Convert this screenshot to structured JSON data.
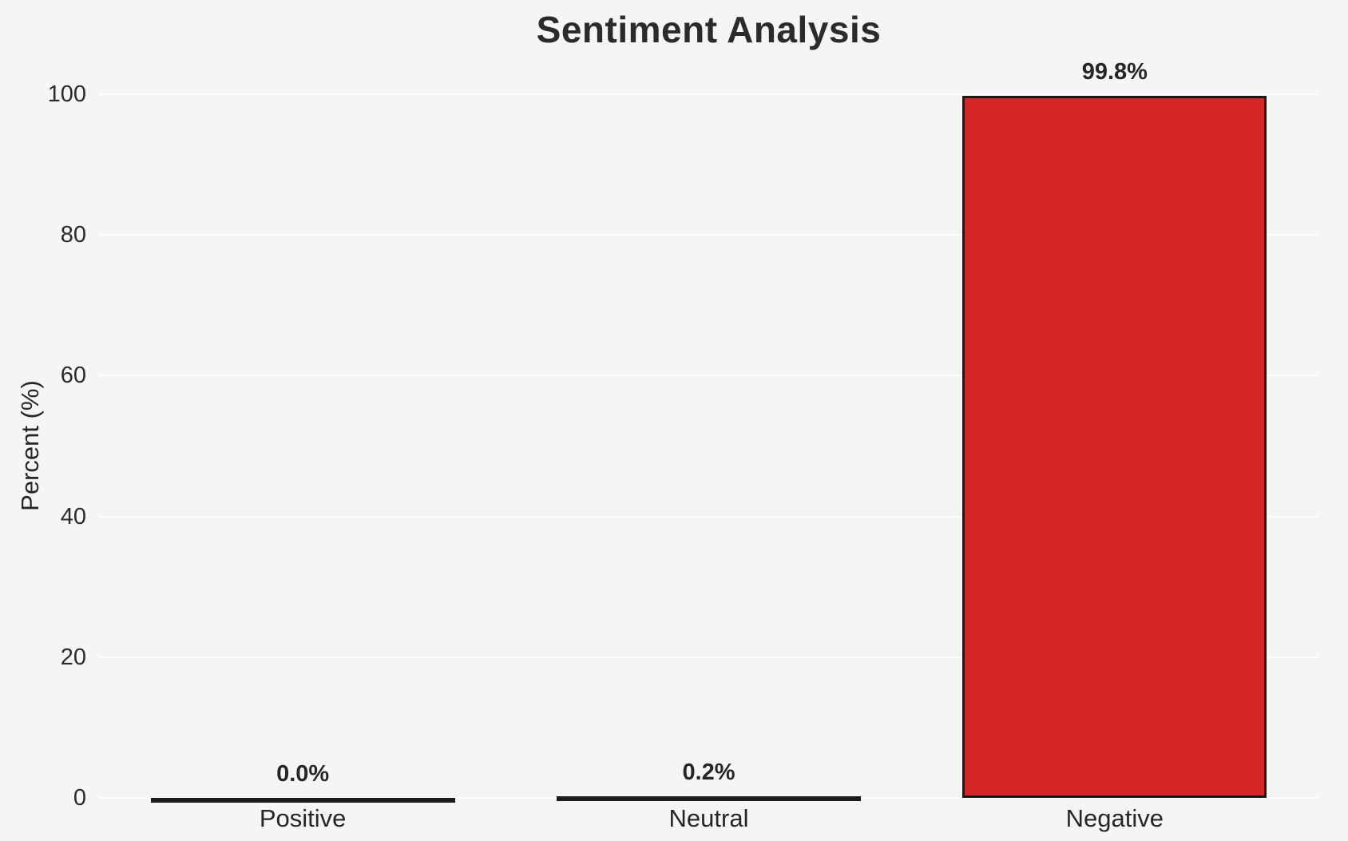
{
  "chart_data": {
    "type": "bar",
    "title": "Sentiment Analysis",
    "categories": [
      "Positive",
      "Neutral",
      "Negative"
    ],
    "values": [
      0.0,
      0.2,
      99.8
    ],
    "value_labels": [
      "0.0%",
      "0.2%",
      "99.8%"
    ],
    "xlabel": "",
    "ylabel": "Percent (%)",
    "ylim": [
      0,
      100
    ],
    "yticks": [
      0,
      20,
      40,
      60,
      80,
      100
    ],
    "grid": true,
    "legend": "none",
    "bar_color": "#d62728",
    "bar_edge_color": "#1a1a1a",
    "background_color": "#f5f5f6",
    "grid_color": "#ffffff"
  }
}
